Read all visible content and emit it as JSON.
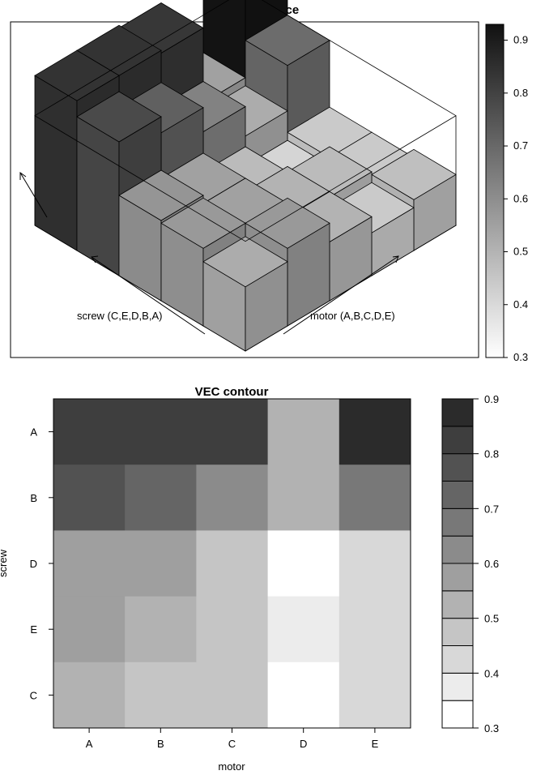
{
  "chart_data": [
    {
      "type": "bar3d",
      "title": "VEC surface",
      "xlabel": "motor (A,B,C,D,E)",
      "ylabel": "screw (C,E,D,B,A)",
      "x_categories": [
        "A",
        "B",
        "C",
        "D",
        "E"
      ],
      "y_categories": [
        "C",
        "E",
        "D",
        "B",
        "A"
      ],
      "values": [
        [
          0.52,
          0.57,
          0.5,
          0.44,
          0.47
        ],
        [
          0.57,
          0.55,
          0.5,
          0.48,
          0.44
        ],
        [
          0.58,
          0.55,
          0.48,
          0.41,
          0.44
        ],
        [
          0.78,
          0.72,
          0.63,
          0.52,
          0.69
        ],
        [
          0.84,
          0.84,
          0.83,
          0.55,
          0.92
        ]
      ],
      "colorbar": {
        "range": [
          0.3,
          0.93
        ],
        "ticks": [
          "0.3",
          "0.4",
          "0.5",
          "0.6",
          "0.7",
          "0.8",
          "0.9"
        ]
      }
    },
    {
      "type": "heatmap",
      "title": "VEC contour",
      "xlabel": "motor",
      "ylabel": "screw",
      "x_categories": [
        "A",
        "B",
        "C",
        "D",
        "E"
      ],
      "y_categories": [
        "A",
        "B",
        "D",
        "E",
        "C"
      ],
      "levels": [
        [
          "0.80-0.85",
          "0.80-0.85",
          "0.80-0.85",
          "0.50-0.55",
          "0.85-0.90"
        ],
        [
          "0.75-0.80",
          "0.70-0.75",
          "0.60-0.65",
          "0.50-0.55",
          "0.65-0.70"
        ],
        [
          "0.55-0.60",
          "0.55-0.60",
          "0.45-0.50",
          "0.30-0.35",
          "0.40-0.45"
        ],
        [
          "0.55-0.60",
          "0.50-0.55",
          "0.45-0.50",
          "0.35-0.40",
          "0.40-0.45"
        ],
        [
          "0.50-0.55",
          "0.45-0.50",
          "0.45-0.50",
          "0.30-0.35",
          "0.40-0.45"
        ]
      ],
      "values": [
        [
          0.83,
          0.83,
          0.83,
          0.53,
          0.87
        ],
        [
          0.78,
          0.73,
          0.63,
          0.53,
          0.68
        ],
        [
          0.58,
          0.58,
          0.48,
          0.32,
          0.43
        ],
        [
          0.58,
          0.53,
          0.48,
          0.37,
          0.43
        ],
        [
          0.53,
          0.48,
          0.48,
          0.32,
          0.43
        ]
      ],
      "colorbar": {
        "range": [
          0.3,
          0.9
        ],
        "breaks": [
          0.3,
          0.35,
          0.4,
          0.45,
          0.5,
          0.55,
          0.6,
          0.65,
          0.7,
          0.75,
          0.8,
          0.85,
          0.9
        ],
        "ticks": [
          "0.3",
          "0.4",
          "0.5",
          "0.6",
          "0.7",
          "0.8",
          "0.9"
        ]
      }
    }
  ]
}
